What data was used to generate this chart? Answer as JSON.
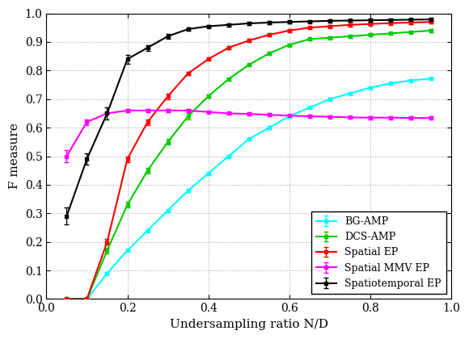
{
  "title": "",
  "xlabel": "Undersampling ratio N/D",
  "ylabel": "F measure",
  "xlim": [
    0,
    1.0
  ],
  "ylim": [
    0,
    1.0
  ],
  "bg_color": "#ffffff",
  "grid_color": "#aaaaaa",
  "BG_AMP": {
    "x": [
      0.05,
      0.1,
      0.15,
      0.2,
      0.25,
      0.3,
      0.35,
      0.4,
      0.45,
      0.5,
      0.55,
      0.6,
      0.65,
      0.7,
      0.75,
      0.8,
      0.85,
      0.9,
      0.95
    ],
    "y": [
      0.0,
      0.0,
      0.09,
      0.17,
      0.24,
      0.31,
      0.38,
      0.44,
      0.5,
      0.56,
      0.6,
      0.64,
      0.67,
      0.7,
      0.72,
      0.74,
      0.755,
      0.765,
      0.772
    ],
    "yerr": [
      0.0,
      0.0,
      0.005,
      0.005,
      0.005,
      0.005,
      0.005,
      0.005,
      0.005,
      0.005,
      0.005,
      0.005,
      0.005,
      0.005,
      0.005,
      0.005,
      0.005,
      0.005,
      0.005
    ],
    "color": "#00ffff",
    "label": "BG-AMP"
  },
  "DCS_AMP": {
    "x": [
      0.05,
      0.1,
      0.15,
      0.2,
      0.25,
      0.3,
      0.35,
      0.4,
      0.45,
      0.5,
      0.55,
      0.6,
      0.65,
      0.7,
      0.75,
      0.8,
      0.85,
      0.9,
      0.95
    ],
    "y": [
      0.0,
      0.0,
      0.17,
      0.33,
      0.45,
      0.55,
      0.64,
      0.71,
      0.77,
      0.82,
      0.86,
      0.89,
      0.91,
      0.915,
      0.92,
      0.925,
      0.93,
      0.935,
      0.94
    ],
    "yerr": [
      0.0,
      0.0,
      0.01,
      0.01,
      0.01,
      0.01,
      0.01,
      0.005,
      0.005,
      0.005,
      0.005,
      0.005,
      0.005,
      0.005,
      0.005,
      0.005,
      0.005,
      0.005,
      0.005
    ],
    "color": "#00cc00",
    "label": "DCS-AMP"
  },
  "Spatial_EP": {
    "x": [
      0.05,
      0.1,
      0.15,
      0.2,
      0.25,
      0.3,
      0.35,
      0.4,
      0.45,
      0.5,
      0.55,
      0.6,
      0.65,
      0.7,
      0.75,
      0.8,
      0.85,
      0.9,
      0.95
    ],
    "y": [
      0.0,
      0.0,
      0.2,
      0.49,
      0.62,
      0.71,
      0.79,
      0.84,
      0.88,
      0.905,
      0.925,
      0.94,
      0.95,
      0.955,
      0.96,
      0.963,
      0.966,
      0.968,
      0.97
    ],
    "yerr": [
      0.0,
      0.0,
      0.01,
      0.01,
      0.01,
      0.01,
      0.005,
      0.005,
      0.005,
      0.005,
      0.005,
      0.005,
      0.005,
      0.005,
      0.005,
      0.005,
      0.005,
      0.005,
      0.005
    ],
    "color": "#ff0000",
    "label": "Spatial EP"
  },
  "Spatial_MMV_EP": {
    "x": [
      0.05,
      0.1,
      0.15,
      0.2,
      0.25,
      0.3,
      0.35,
      0.4,
      0.45,
      0.5,
      0.55,
      0.6,
      0.65,
      0.7,
      0.75,
      0.8,
      0.85,
      0.9,
      0.95
    ],
    "y": [
      0.5,
      0.62,
      0.65,
      0.66,
      0.66,
      0.66,
      0.66,
      0.655,
      0.65,
      0.648,
      0.645,
      0.642,
      0.64,
      0.638,
      0.636,
      0.635,
      0.635,
      0.634,
      0.634
    ],
    "yerr": [
      0.02,
      0.01,
      0.005,
      0.005,
      0.005,
      0.005,
      0.005,
      0.005,
      0.005,
      0.005,
      0.005,
      0.005,
      0.005,
      0.005,
      0.005,
      0.005,
      0.005,
      0.005,
      0.005
    ],
    "color": "#ff00ff",
    "label": "Spatial MMV EP"
  },
  "Spatiotemporal_EP": {
    "x": [
      0.05,
      0.1,
      0.15,
      0.2,
      0.25,
      0.3,
      0.35,
      0.4,
      0.45,
      0.5,
      0.55,
      0.6,
      0.65,
      0.7,
      0.75,
      0.8,
      0.85,
      0.9,
      0.95
    ],
    "y": [
      0.29,
      0.49,
      0.65,
      0.84,
      0.88,
      0.92,
      0.945,
      0.955,
      0.96,
      0.965,
      0.968,
      0.97,
      0.972,
      0.974,
      0.975,
      0.976,
      0.977,
      0.978,
      0.979
    ],
    "yerr": [
      0.03,
      0.02,
      0.02,
      0.015,
      0.01,
      0.008,
      0.005,
      0.005,
      0.005,
      0.005,
      0.005,
      0.005,
      0.005,
      0.005,
      0.005,
      0.005,
      0.005,
      0.005,
      0.005
    ],
    "color": "#000000",
    "label": "Spatiotemporal EP"
  },
  "xticks": [
    0,
    0.2,
    0.4,
    0.6,
    0.8,
    1.0
  ],
  "yticks": [
    0,
    0.1,
    0.2,
    0.3,
    0.4,
    0.5,
    0.6,
    0.7,
    0.8,
    0.9,
    1
  ],
  "legend_loc": "lower right",
  "legend_fontsize": 9,
  "tick_fontsize": 10,
  "label_fontsize": 11,
  "linewidth": 1.5,
  "capsize": 2,
  "elinewidth": 1.0,
  "markersize": 3
}
